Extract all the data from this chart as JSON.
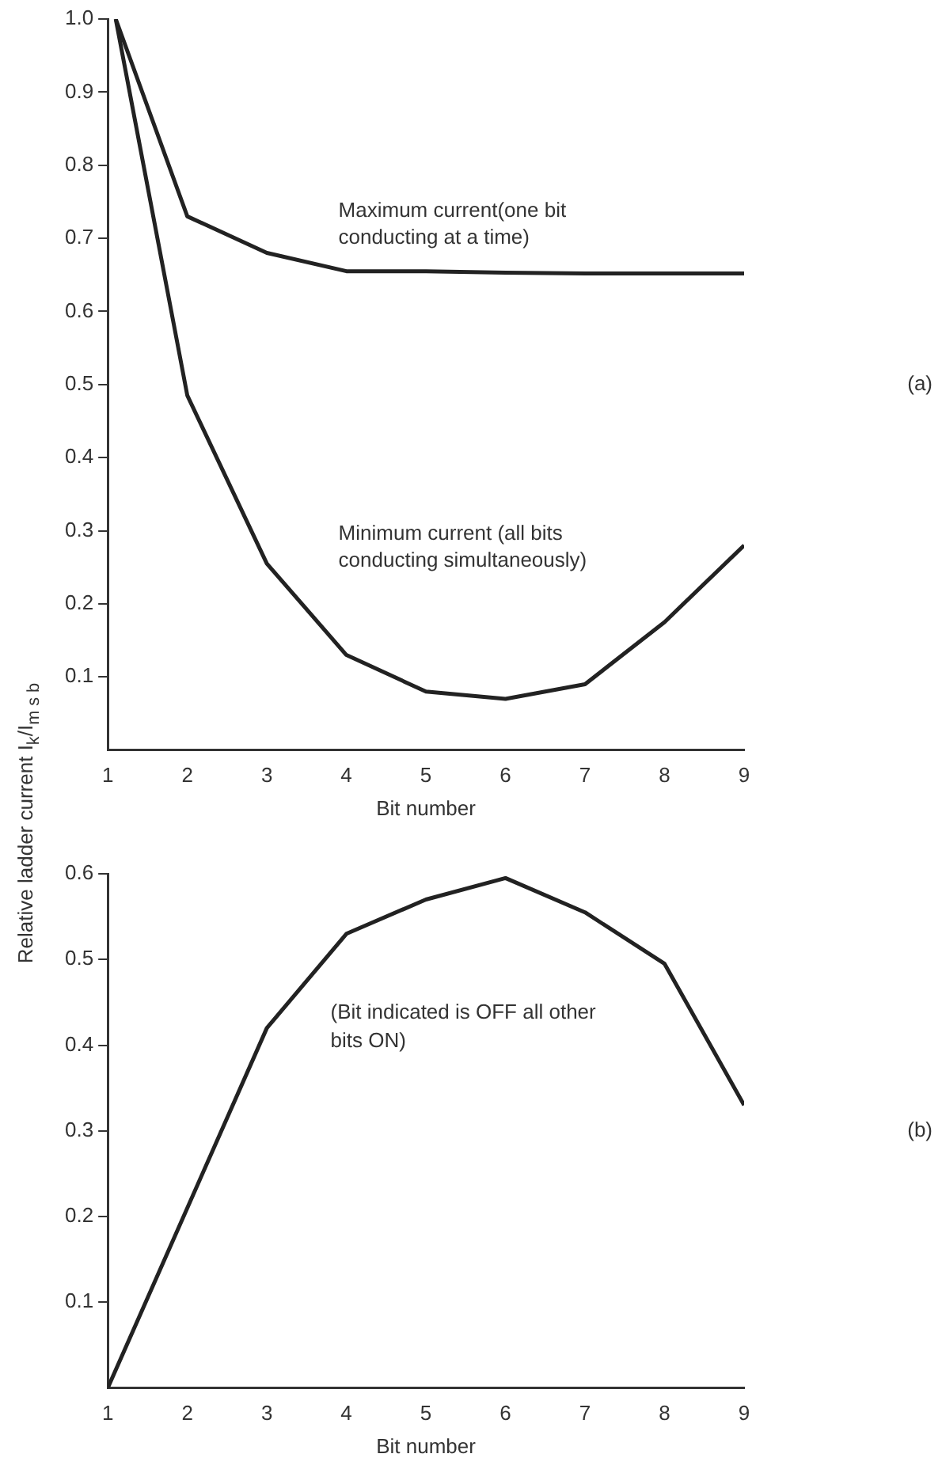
{
  "chart_data": [
    {
      "type": "line",
      "ylabel": "Relative ladder current I$_{k}$/I$_{m s b}$",
      "xlabel": "Bit number",
      "annotations": [
        "(a)"
      ],
      "x": [
        1.1,
        2,
        3,
        4,
        5,
        6,
        7,
        8,
        9
      ],
      "series": [
        {
          "name": "Maximum current(one bit conducting at a time)",
          "color": "#222222",
          "values": [
            1.0,
            0.73,
            0.68,
            0.655,
            0.655,
            0.653,
            0.652,
            0.652,
            0.652
          ]
        },
        {
          "name": "Minimum current (all bits conducting simultaneously)",
          "color": "#222222",
          "values": [
            1.0,
            0.485,
            0.255,
            0.13,
            0.08,
            0.07,
            0.09,
            0.175,
            0.28
          ]
        }
      ],
      "xlim": [
        1,
        9
      ],
      "xticks": [
        1,
        2,
        3,
        4,
        5,
        6,
        7,
        8,
        9
      ],
      "ylim": [
        0,
        1.0
      ],
      "yticks": [
        0.1,
        0.2,
        0.3,
        0.4,
        0.5,
        0.6,
        0.7,
        0.8,
        0.9,
        {
          "value": 1.0,
          "label": "1.0"
        }
      ],
      "grid": false,
      "legend": false,
      "marker": "none",
      "line_style": "solid"
    },
    {
      "type": "line",
      "xlabel": "Bit number",
      "annotations": [
        "(Bit indicated is OFF all other bits ON)",
        "(b)"
      ],
      "x": [
        1,
        2,
        3,
        4,
        5,
        6,
        7,
        8,
        9
      ],
      "series": [
        {
          "color": "#222222",
          "values": [
            0,
            0.21,
            0.42,
            0.53,
            0.57,
            0.595,
            0.555,
            0.495,
            0.33
          ]
        }
      ],
      "xlim": [
        1,
        9
      ],
      "xticks": [
        1,
        2,
        3,
        4,
        5,
        6,
        7,
        8,
        9
      ],
      "ylim": [
        0,
        0.6
      ],
      "yticks": [
        0.1,
        0.2,
        0.3,
        0.4,
        0.5,
        0.6
      ],
      "grid": false,
      "legend": false,
      "marker": "none",
      "line_style": "solid"
    }
  ]
}
